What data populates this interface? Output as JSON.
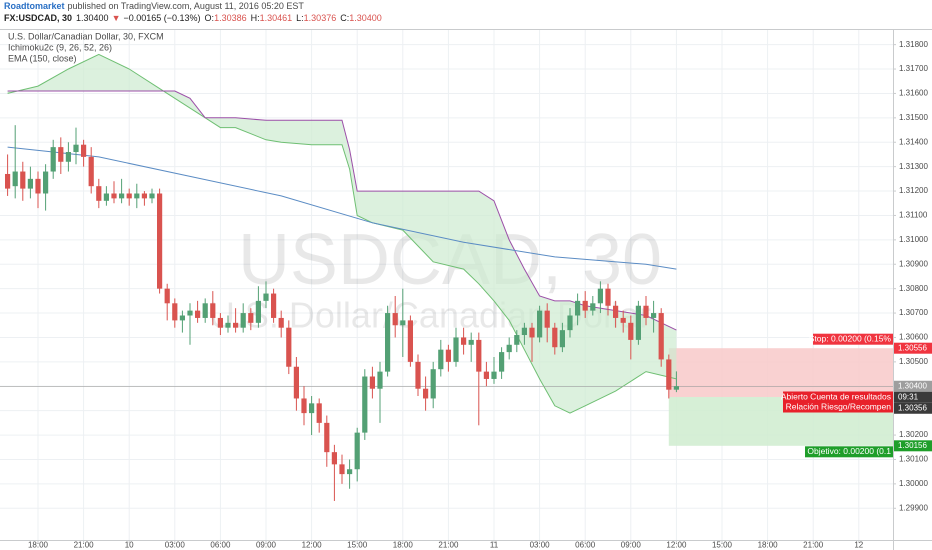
{
  "header": {
    "author": "Roadtomarket",
    "published": "published on TradingView.com, August 11, 2016 05:20 EST",
    "symbol": "FX:USDCAD, 30",
    "last": "1.30400",
    "arrow": "▼",
    "change": "−0.00165 (−0.13%)",
    "o_label": "O:",
    "open": "1.30386",
    "h_label": "H:",
    "high": "1.30461",
    "l_label": "L:",
    "low": "1.30376",
    "c_label": "C:",
    "close": "1.30400"
  },
  "chart_data": {
    "type": "candlestick",
    "title": "U.S. Dollar/Canadian Dollar, 30, FXCM",
    "watermark": "USDCAD, 30",
    "watermark_subtitle": "U.S. Dollar/Canadian Dollar",
    "up_color": "#53a074",
    "down_color": "#d9534f",
    "grid": true,
    "xlim": [
      -1,
      116.5
    ],
    "ylim": [
      1.2977,
      1.3186
    ],
    "xticks": [
      {
        "value": 4,
        "label": "18:00"
      },
      {
        "value": 10,
        "label": "21:00"
      },
      {
        "value": 16,
        "label": "10"
      },
      {
        "value": 22,
        "label": "03:00"
      },
      {
        "value": 28,
        "label": "06:00"
      },
      {
        "value": 34,
        "label": "09:00"
      },
      {
        "value": 40,
        "label": "12:00"
      },
      {
        "value": 46,
        "label": "15:00"
      },
      {
        "value": 52,
        "label": "18:00"
      },
      {
        "value": 58,
        "label": "21:00"
      },
      {
        "value": 64,
        "label": "11"
      },
      {
        "value": 70,
        "label": "03:00"
      },
      {
        "value": 76,
        "label": "06:00"
      },
      {
        "value": 82,
        "label": "09:00"
      },
      {
        "value": 88,
        "label": "12:00"
      },
      {
        "value": 94,
        "label": "15:00"
      },
      {
        "value": 100,
        "label": "18:00"
      },
      {
        "value": 106,
        "label": "21:00"
      },
      {
        "value": 112,
        "label": "12"
      }
    ],
    "yticks": [
      {
        "value": 1.299,
        "label": "1.29900"
      },
      {
        "value": 1.3,
        "label": "1.30000"
      },
      {
        "value": 1.301,
        "label": "1.30100"
      },
      {
        "value": 1.302,
        "label": "1.30200"
      },
      {
        "value": 1.303,
        "label": "1.30300"
      },
      {
        "value": 1.304,
        "label": "1.30400"
      },
      {
        "value": 1.305,
        "label": "1.30500"
      },
      {
        "value": 1.306,
        "label": "1.30600"
      },
      {
        "value": 1.307,
        "label": "1.30700"
      },
      {
        "value": 1.308,
        "label": "1.30800"
      },
      {
        "value": 1.309,
        "label": "1.30900"
      },
      {
        "value": 1.31,
        "label": "1.31000"
      },
      {
        "value": 1.311,
        "label": "1.31100"
      },
      {
        "value": 1.312,
        "label": "1.31200"
      },
      {
        "value": 1.313,
        "label": "1.31300"
      },
      {
        "value": 1.314,
        "label": "1.31400"
      },
      {
        "value": 1.315,
        "label": "1.31500"
      },
      {
        "value": 1.316,
        "label": "1.31600"
      },
      {
        "value": 1.317,
        "label": "1.31700"
      },
      {
        "value": 1.318,
        "label": "1.31800"
      }
    ],
    "open": [
      1.3127,
      1.3122,
      1.3128,
      1.3121,
      1.3125,
      1.3119,
      1.3128,
      1.3138,
      1.3132,
      1.3136,
      1.3139,
      1.3134,
      1.3122,
      1.3116,
      1.3119,
      1.3117,
      1.3119,
      1.3117,
      1.3119,
      1.3117,
      1.3119,
      1.308,
      1.3074,
      1.3067,
      1.3069,
      1.3071,
      1.3068,
      1.3074,
      1.3068,
      1.3064,
      1.3066,
      1.3064,
      1.307,
      1.3066,
      1.3075,
      1.3078,
      1.3068,
      1.3064,
      1.3048,
      1.3035,
      1.3029,
      1.3033,
      1.3025,
      1.3013,
      1.3008,
      1.3004,
      1.3006,
      1.3021,
      1.3044,
      1.3039,
      1.3046,
      1.307,
      1.3065,
      1.3067,
      1.305,
      1.3039,
      1.3035,
      1.3047,
      1.3055,
      1.305,
      1.306,
      1.3057,
      1.3059,
      1.3046,
      1.3043,
      1.3046,
      1.3054,
      1.3057,
      1.3061,
      1.3064,
      1.306,
      1.3071,
      1.3064,
      1.3056,
      1.3063,
      1.3069,
      1.3075,
      1.3071,
      1.3074,
      1.308,
      1.3073,
      1.3068,
      1.3066,
      1.3059,
      1.3073,
      1.3068,
      1.307,
      1.3051,
      1.30386
    ],
    "high": [
      1.3135,
      1.3147,
      1.3132,
      1.313,
      1.3128,
      1.3131,
      1.3141,
      1.3142,
      1.314,
      1.3146,
      1.3141,
      1.3138,
      1.3125,
      1.3122,
      1.3124,
      1.3125,
      1.3121,
      1.3123,
      1.312,
      1.3121,
      1.3121,
      1.3082,
      1.3076,
      1.3071,
      1.3074,
      1.3075,
      1.3076,
      1.3079,
      1.307,
      1.3069,
      1.3072,
      1.3074,
      1.3072,
      1.3081,
      1.3083,
      1.308,
      1.3071,
      1.3067,
      1.3052,
      1.304,
      1.3036,
      1.3035,
      1.3028,
      1.3016,
      1.3012,
      1.301,
      1.3023,
      1.3047,
      1.3048,
      1.305,
      1.3073,
      1.3077,
      1.308,
      1.3069,
      1.3053,
      1.3044,
      1.305,
      1.3059,
      1.3057,
      1.3064,
      1.3064,
      1.3062,
      1.3062,
      1.305,
      1.3052,
      1.3056,
      1.306,
      1.3063,
      1.3066,
      1.3066,
      1.3073,
      1.3074,
      1.3066,
      1.3066,
      1.3072,
      1.3078,
      1.3079,
      1.3077,
      1.3083,
      1.3082,
      1.3075,
      1.3071,
      1.3069,
      1.3075,
      1.3077,
      1.3075,
      1.3072,
      1.3053,
      1.30461
    ],
    "low": [
      1.3118,
      1.3117,
      1.3116,
      1.3117,
      1.3113,
      1.3112,
      1.3125,
      1.3127,
      1.3128,
      1.3131,
      1.313,
      1.3119,
      1.3113,
      1.3114,
      1.3115,
      1.3115,
      1.3114,
      1.3113,
      1.3114,
      1.3115,
      1.3078,
      1.3067,
      1.3064,
      1.3062,
      1.3057,
      1.3066,
      1.3066,
      1.3065,
      1.3061,
      1.3062,
      1.3062,
      1.3062,
      1.3063,
      1.3064,
      1.3072,
      1.3066,
      1.306,
      1.3045,
      1.303,
      1.3024,
      1.302,
      1.3021,
      1.3007,
      1.2993,
      1.3,
      1.2998,
      1.3001,
      1.3018,
      1.3035,
      1.3025,
      1.3044,
      1.306,
      1.3052,
      1.3048,
      1.3036,
      1.303,
      1.3031,
      1.3044,
      1.3046,
      1.3048,
      1.3053,
      1.305,
      1.3024,
      1.304,
      1.3041,
      1.3043,
      1.3051,
      1.3054,
      1.3057,
      1.305,
      1.3058,
      1.3058,
      1.3053,
      1.3054,
      1.306,
      1.3065,
      1.3068,
      1.3069,
      1.307,
      1.3069,
      1.3064,
      1.3062,
      1.3051,
      1.3057,
      1.3065,
      1.3062,
      1.3048,
      1.3035,
      1.30376
    ],
    "close": [
      1.3121,
      1.3128,
      1.3121,
      1.3125,
      1.3119,
      1.3128,
      1.3138,
      1.3132,
      1.3136,
      1.3139,
      1.3134,
      1.3122,
      1.3116,
      1.3119,
      1.3117,
      1.3119,
      1.3117,
      1.3119,
      1.3117,
      1.3119,
      1.308,
      1.3074,
      1.3067,
      1.3069,
      1.3071,
      1.3068,
      1.3074,
      1.3068,
      1.3064,
      1.3066,
      1.3064,
      1.307,
      1.3066,
      1.3075,
      1.3078,
      1.3068,
      1.3064,
      1.3048,
      1.3035,
      1.3029,
      1.3033,
      1.3025,
      1.3013,
      1.3008,
      1.3004,
      1.3006,
      1.3021,
      1.3044,
      1.3039,
      1.3046,
      1.307,
      1.3065,
      1.3067,
      1.305,
      1.3039,
      1.3035,
      1.3047,
      1.3055,
      1.305,
      1.306,
      1.3057,
      1.3059,
      1.3046,
      1.3043,
      1.3046,
      1.3054,
      1.3057,
      1.3061,
      1.3064,
      1.306,
      1.3071,
      1.3064,
      1.3056,
      1.3063,
      1.3069,
      1.3075,
      1.3071,
      1.3074,
      1.308,
      1.3073,
      1.3068,
      1.3066,
      1.3059,
      1.3073,
      1.3068,
      1.307,
      1.3051,
      1.30386,
      1.304
    ],
    "ichimoku": {
      "label": "Ichimoku2c (9, 26, 52, 26)",
      "span_a_color": "#6fbf73",
      "span_b_color": "#9c4fa8",
      "fill_color": "#cdebd0",
      "x": [
        0,
        4,
        8,
        12,
        16,
        20,
        22,
        24,
        26,
        28,
        30,
        34,
        36,
        40,
        44,
        45,
        46,
        48,
        52,
        56,
        60,
        62,
        64,
        66,
        68,
        70,
        72,
        74,
        76,
        80,
        84,
        88
      ],
      "span_a": [
        1.316,
        1.3163,
        1.317,
        1.3176,
        1.317,
        1.3162,
        1.3158,
        1.3154,
        1.315,
        1.3146,
        1.3146,
        1.3141,
        1.314,
        1.3139,
        1.3139,
        1.3129,
        1.311,
        1.3107,
        1.3104,
        1.3091,
        1.3088,
        1.3082,
        1.3075,
        1.3067,
        1.3055,
        1.3043,
        1.3032,
        1.3029,
        1.3032,
        1.3038,
        1.3046,
        1.3043
      ],
      "span_b": [
        1.3161,
        1.3161,
        1.3161,
        1.3161,
        1.3161,
        1.3161,
        1.3161,
        1.3158,
        1.315,
        1.315,
        1.315,
        1.3149,
        1.3149,
        1.3149,
        1.3149,
        1.3137,
        1.312,
        1.312,
        1.312,
        1.312,
        1.312,
        1.312,
        1.3116,
        1.31,
        1.3088,
        1.3077,
        1.3075,
        1.3075,
        1.3073,
        1.3071,
        1.3069,
        1.3063
      ]
    },
    "ema": {
      "label": "EMA (150, close)",
      "color": "#5b8cc4",
      "x": [
        0,
        12,
        24,
        36,
        48,
        60,
        72,
        84,
        88
      ],
      "values": [
        1.3138,
        1.3134,
        1.3126,
        1.3118,
        1.3107,
        1.3099,
        1.3093,
        1.309,
        1.3088
      ]
    },
    "price_tags": [
      {
        "value": 1.30556,
        "label": "1.30556",
        "color": "#f0343f"
      },
      {
        "value": 1.304,
        "label": "1.30400",
        "color": "#9e9e9e"
      },
      {
        "value": 1.30356,
        "label": "1.30356",
        "color": "#3a3a3a"
      },
      {
        "value": 1.30156,
        "label": "1.30156",
        "color": "#1f9e2a"
      }
    ],
    "countdown": "09:31",
    "position": {
      "entry": 1.30356,
      "stop": 1.30556,
      "target": 1.30156,
      "loss_color": "#f8c9c9",
      "profit_color": "#cfeccf",
      "stop_label": "Stop: 0.00200 (0.15%",
      "pnl_label": "Abierto Cuenta de resultados",
      "ratio_label": "Relación Riesgo/Recompen",
      "target_label": "Objetivo: 0.00200 (0.1"
    }
  }
}
